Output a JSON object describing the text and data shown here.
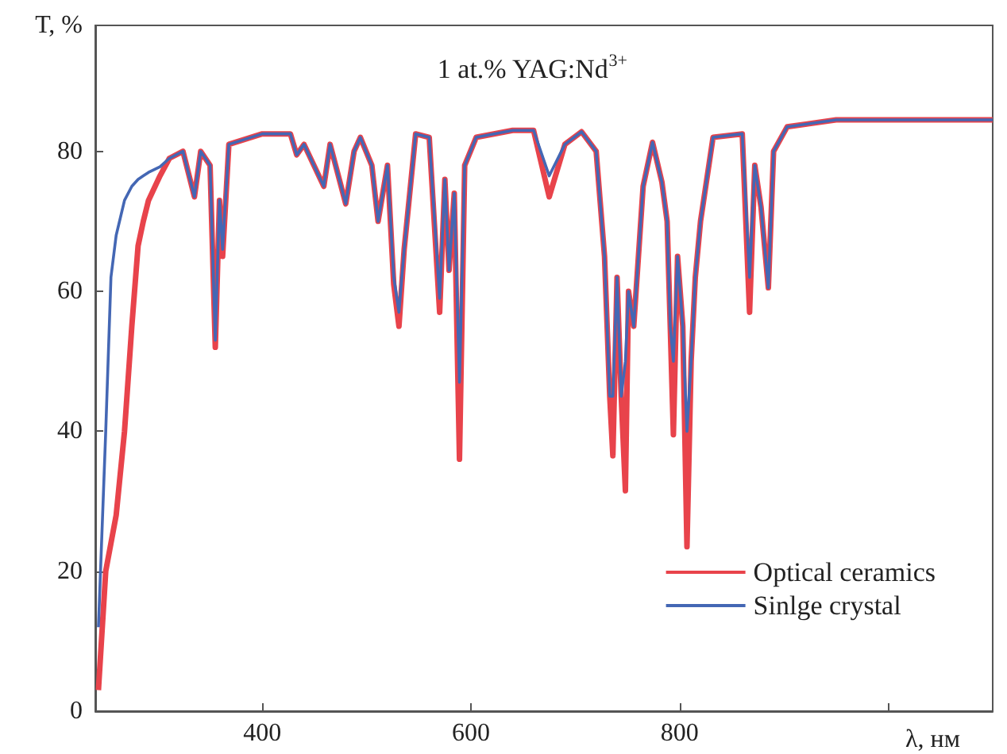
{
  "chart_data": {
    "type": "line",
    "title": "1 at.% YAG:Nd$^{3+}$",
    "xlabel": "λ, нм",
    "ylabel": "T, %",
    "x": [
      243,
      250,
      255,
      260,
      268,
      275,
      281,
      286,
      291,
      302,
      311,
      324,
      335,
      341,
      350,
      355,
      359,
      362,
      368,
      400,
      427,
      433,
      440,
      459,
      465,
      480,
      488,
      494,
      505,
      511,
      520,
      526,
      531,
      536,
      547,
      560,
      570,
      575,
      579,
      584,
      589,
      594,
      605,
      640,
      660,
      675,
      690,
      706,
      720,
      728,
      733,
      736,
      740,
      744,
      748,
      751,
      756,
      765,
      774,
      783,
      788,
      791,
      794,
      798,
      803,
      807,
      811,
      815,
      820,
      832,
      860,
      867,
      872,
      878,
      885,
      890,
      903,
      950,
      1000,
      1100
    ],
    "series": [
      {
        "name": "Optical ceramics",
        "color": "#e8434b",
        "values": [
          3,
          20,
          24,
          28,
          40,
          55,
          66.5,
          70,
          73,
          76.5,
          79,
          80,
          73.5,
          80,
          78,
          52,
          73,
          65,
          81,
          82.5,
          82.5,
          79.5,
          81,
          75,
          81,
          72.5,
          80,
          82,
          78,
          70,
          78,
          61,
          55,
          66,
          82.5,
          82,
          57,
          76,
          63,
          74,
          36,
          78,
          82,
          83,
          83,
          73.5,
          81,
          82.8,
          80,
          65,
          45,
          36.5,
          62,
          45,
          31.5,
          60,
          55,
          75,
          81.3,
          75.6,
          70,
          55,
          39.5,
          65,
          55,
          23.5,
          50,
          62,
          70,
          82,
          82.5,
          57,
          78,
          72,
          60.5,
          80,
          83.5,
          84.5,
          84.5,
          84.5
        ]
      },
      {
        "name": "Sinlge crystal",
        "color": "#4467b4",
        "values": [
          12,
          40,
          62,
          68,
          73,
          75,
          76,
          76.5,
          77,
          77.8,
          79,
          80,
          73.5,
          80,
          78,
          53,
          73,
          66,
          81,
          82.5,
          82.5,
          79.5,
          81,
          75,
          81,
          72.5,
          80,
          82,
          78,
          70,
          78,
          62,
          57,
          66,
          82.5,
          82,
          59,
          76,
          63,
          74,
          47,
          78,
          82,
          83,
          83,
          76.5,
          81,
          82.8,
          80,
          65,
          45,
          45,
          62,
          45,
          50,
          60,
          55,
          75,
          81.3,
          75.6,
          70,
          55,
          50,
          65,
          55,
          40,
          50,
          62,
          70,
          82,
          82.5,
          62,
          78,
          72,
          60.5,
          80,
          83.5,
          84.5,
          84.5,
          84.5
        ]
      }
    ],
    "xlim": [
      240,
      1100
    ],
    "xticks": [
      400,
      600,
      800,
      {
        "value": 1000,
        "label": null
      }
    ],
    "ylim": [
      0,
      98
    ],
    "yticks": [
      0,
      20,
      40,
      60,
      80
    ],
    "grid": false,
    "legend": "bottom right",
    "marker": "none",
    "line_style": "solid"
  }
}
